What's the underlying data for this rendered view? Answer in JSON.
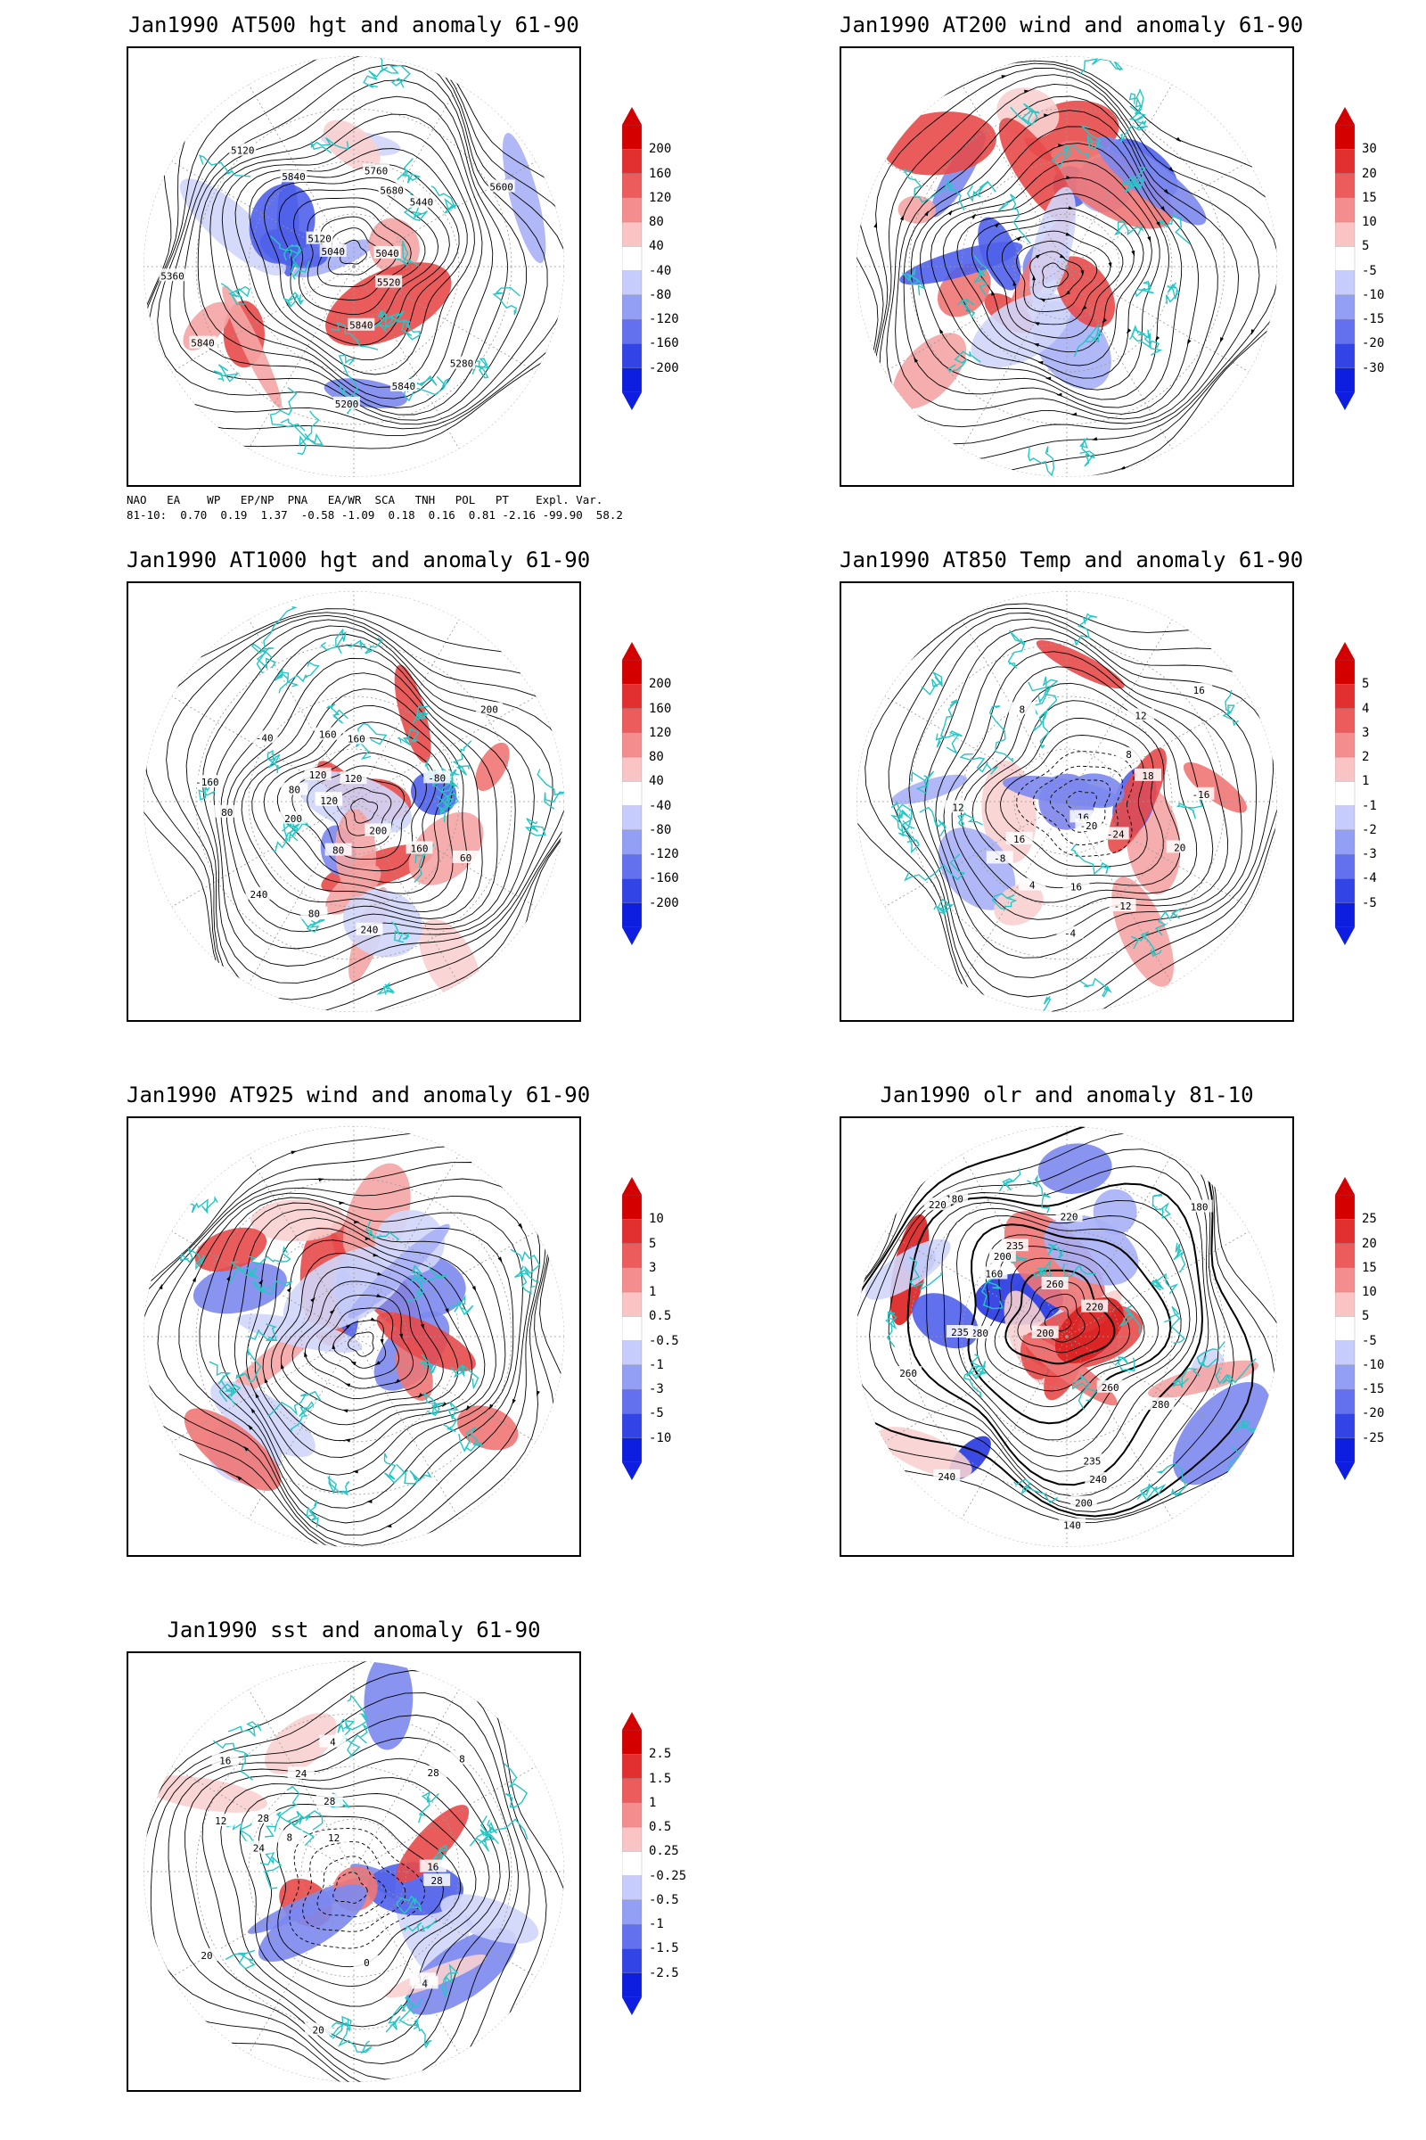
{
  "panels": [
    {
      "title": "Jan1990 AT500 hgt and anomaly 61-90",
      "type": "hgt",
      "colorbar": [
        "200",
        "160",
        "120",
        "80",
        "40",
        "-40",
        "-80",
        "-120",
        "-160",
        "-200"
      ],
      "contour_labels": [
        "5840",
        "5840",
        "5040",
        "5120",
        "5040",
        "5120",
        "5200",
        "5280",
        "5360",
        "5440",
        "5520",
        "5600",
        "5680",
        "5760",
        "5840",
        "5840"
      ]
    },
    {
      "title": "Jan1990 AT200 wind and anomaly 61-90",
      "type": "wind",
      "colorbar": [
        "30",
        "20",
        "15",
        "10",
        "5",
        "-5",
        "-10",
        "-15",
        "-20",
        "-30"
      ],
      "contour_labels": []
    },
    {
      "title": "Jan1990 AT1000 hgt and anomaly 61-90",
      "type": "hgt",
      "colorbar": [
        "200",
        "160",
        "120",
        "80",
        "40",
        "-40",
        "-80",
        "-120",
        "-160",
        "-200"
      ],
      "contour_labels": [
        "80",
        "80",
        "160",
        "200",
        "-80",
        "-40",
        "120",
        "80",
        "160",
        "200",
        "240",
        "200",
        "120",
        "-160",
        "240",
        "200",
        "160",
        "120",
        "80",
        "60"
      ]
    },
    {
      "title": "Jan1990 AT850 Temp and anomaly 61-90",
      "type": "temp",
      "colorbar": [
        "5",
        "4",
        "3",
        "2",
        "1",
        "-1",
        "-2",
        "-3",
        "-4",
        "-5"
      ],
      "contour_labels": [
        "16",
        "12",
        "8",
        "16",
        "-20",
        "-24",
        "-16",
        "-12",
        "-8",
        "-4",
        "4",
        "8",
        "12",
        "16",
        "18",
        "20",
        "16"
      ]
    },
    {
      "title": "Jan1990 AT925 wind and anomaly 61-90",
      "type": "wind",
      "colorbar": [
        "10",
        "5",
        "3",
        "1",
        "0.5",
        "-0.5",
        "-1",
        "-3",
        "-5",
        "-10"
      ],
      "contour_labels": []
    },
    {
      "title": "Jan1990 olr and anomaly 81-10",
      "type": "olr",
      "colorbar": [
        "25",
        "20",
        "15",
        "10",
        "5",
        "-5",
        "-10",
        "-15",
        "-20",
        "-25"
      ],
      "contour_labels": [
        "235",
        "260",
        "220",
        "200",
        "180",
        "140",
        "160",
        "240",
        "280",
        "260",
        "235",
        "220",
        "200",
        "180",
        "235",
        "260",
        "280",
        "200",
        "220",
        "240"
      ]
    },
    {
      "title": "Jan1990 sst and anomaly 61-90",
      "type": "sst",
      "colorbar": [
        "2.5",
        "1.5",
        "1",
        "0.5",
        "0.25",
        "-0.25",
        "-0.5",
        "-1",
        "-1.5",
        "-2.5"
      ],
      "contour_labels": [
        "28",
        "24",
        "20",
        "16",
        "12",
        "8",
        "4",
        "0",
        "20",
        "16",
        "12",
        "8",
        "4",
        "16",
        "24",
        "28",
        "28",
        "28"
      ]
    }
  ],
  "indices": {
    "header": "NAO   EA    WP   EP/NP  PNA   EA/WR  SCA   TNH   POL   PT    Expl. Var.",
    "row": "81-10:  0.70  0.19  1.37  -0.58 -1.09  0.18  0.16  0.81 -2.16 -99.90  58.2"
  },
  "colors": {
    "positive": "#e8474a",
    "negative": "#3b4ee6",
    "coast": "#26c6c6",
    "contour": "#000000"
  }
}
